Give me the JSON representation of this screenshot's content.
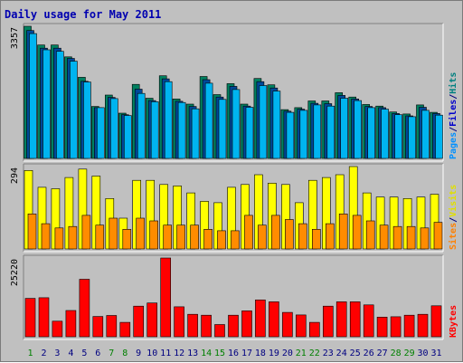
{
  "chart_data": {
    "title": "Daily usage for May 2011",
    "type": "bar",
    "categories": [
      "1",
      "2",
      "3",
      "4",
      "5",
      "6",
      "7",
      "8",
      "9",
      "10",
      "11",
      "12",
      "13",
      "14",
      "15",
      "16",
      "17",
      "18",
      "19",
      "20",
      "21",
      "22",
      "23",
      "24",
      "25",
      "26",
      "27",
      "28",
      "29",
      "30",
      "31"
    ],
    "weekend_days": [
      "1",
      "7",
      "8",
      "14",
      "15",
      "21",
      "22",
      "28",
      "29"
    ],
    "panels": [
      {
        "id": "traffic",
        "max_label": "3357",
        "ylim": [
          0,
          3357
        ],
        "legend": [
          {
            "text": "Pages",
            "color": "#0090ff"
          },
          {
            "text": "/",
            "color": "#000080"
          },
          {
            "text": "Files",
            "color": "#0000cc"
          },
          {
            "text": "/",
            "color": "#000080"
          },
          {
            "text": "Hits",
            "color": "#008080"
          }
        ],
        "series": [
          {
            "name": "Hits",
            "color": "#008060",
            "values": [
              3357,
              2880,
              2880,
              2580,
              2060,
              1320,
              1610,
              1150,
              1880,
              1530,
              2100,
              1510,
              1380,
              2080,
              1620,
              1900,
              1380,
              2030,
              1870,
              1240,
              1290,
              1460,
              1460,
              1670,
              1560,
              1370,
              1330,
              1180,
              1130,
              1360,
              1170
            ]
          },
          {
            "name": "Files",
            "color": "#004898",
            "values": [
              3250,
              2800,
              2800,
              2540,
              1960,
              1290,
              1550,
              1110,
              1760,
              1470,
              2020,
              1450,
              1320,
              2000,
              1560,
              1830,
              1330,
              1950,
              1790,
              1200,
              1250,
              1400,
              1390,
              1600,
              1510,
              1320,
              1290,
              1140,
              1080,
              1300,
              1140
            ]
          },
          {
            "name": "Pages",
            "color": "#00b4f0",
            "values": [
              3170,
              2760,
              2720,
              2470,
              1940,
              1290,
              1520,
              1090,
              1650,
              1440,
              1950,
              1420,
              1260,
              1910,
              1500,
              1750,
              1300,
              1850,
              1710,
              1170,
              1220,
              1360,
              1330,
              1530,
              1470,
              1290,
              1250,
              1110,
              1060,
              1220,
              1100
            ]
          }
        ]
      },
      {
        "id": "visits",
        "max_label": "294",
        "ylim": [
          0,
          294
        ],
        "legend": [
          {
            "text": "Sites",
            "color": "#ff8000"
          },
          {
            "text": "/",
            "color": "#000080"
          },
          {
            "text": "Visits",
            "color": "#e0e000"
          }
        ],
        "series": [
          {
            "name": "Visits",
            "color": "#ffff00",
            "values": [
              280,
              220,
              215,
              255,
              285,
              260,
              180,
              110,
              245,
              245,
              230,
              225,
              200,
              170,
              165,
              220,
              230,
              265,
              235,
              230,
              165,
              245,
              255,
              265,
              294,
              200,
              185,
              185,
              180,
              185,
              195
            ]
          },
          {
            "name": "Sites",
            "color": "#ff8c00",
            "values": [
              125,
              90,
              75,
              80,
              120,
              85,
              110,
              70,
              110,
              100,
              85,
              85,
              85,
              70,
              65,
              65,
              120,
              85,
              120,
              105,
              90,
              70,
              90,
              125,
              120,
              100,
              85,
              80,
              80,
              75,
              95
            ]
          }
        ]
      },
      {
        "id": "kbytes",
        "max_label": "25220",
        "ylim": [
          0,
          25220
        ],
        "legend": [
          {
            "text": "KBytes",
            "color": "#ff0000"
          }
        ],
        "series": [
          {
            "name": "KBytes",
            "color": "#ff0000",
            "values": [
              12300,
              12500,
              5000,
              8400,
              18400,
              6500,
              6800,
              4600,
              9800,
              10800,
              25220,
              9600,
              7200,
              6900,
              3900,
              6900,
              8300,
              11800,
              11200,
              7800,
              7000,
              4600,
              9800,
              11200,
              11200,
              10200,
              6300,
              6400,
              6900,
              7200,
              9900
            ]
          }
        ]
      }
    ]
  }
}
